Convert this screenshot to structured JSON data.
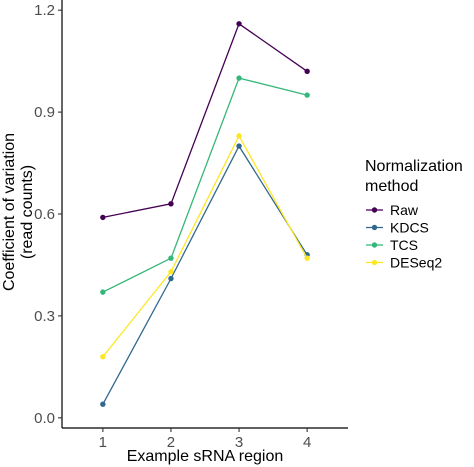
{
  "chart_data": {
    "type": "line",
    "xlabel": "Example sRNA region",
    "ylabel_lines": [
      "Coefficient of variation",
      "(read counts)"
    ],
    "x": [
      1,
      2,
      3,
      4
    ],
    "x_tick_labels": [
      "1",
      "2",
      "3",
      "4"
    ],
    "xlim": [
      0.4,
      4.6
    ],
    "ylim": [
      -0.03,
      1.23
    ],
    "y_ticks": [
      0.0,
      0.3,
      0.6,
      0.9,
      1.2
    ],
    "y_tick_labels": [
      "0.0",
      "0.3",
      "0.6",
      "0.9",
      "1.2"
    ],
    "grid": false,
    "legend": {
      "title_lines": [
        "Normalization",
        "method"
      ],
      "placement": "right"
    },
    "series": [
      {
        "name": "Raw",
        "color": "#440154",
        "values": [
          0.59,
          0.63,
          1.16,
          1.02
        ]
      },
      {
        "name": "KDCS",
        "color": "#31688e",
        "values": [
          0.04,
          0.41,
          0.8,
          0.48
        ]
      },
      {
        "name": "TCS",
        "color": "#35b779",
        "values": [
          0.37,
          0.47,
          1.0,
          0.95
        ]
      },
      {
        "name": "DESeq2",
        "color": "#fde725",
        "values": [
          0.18,
          0.43,
          0.83,
          0.47
        ]
      }
    ]
  }
}
